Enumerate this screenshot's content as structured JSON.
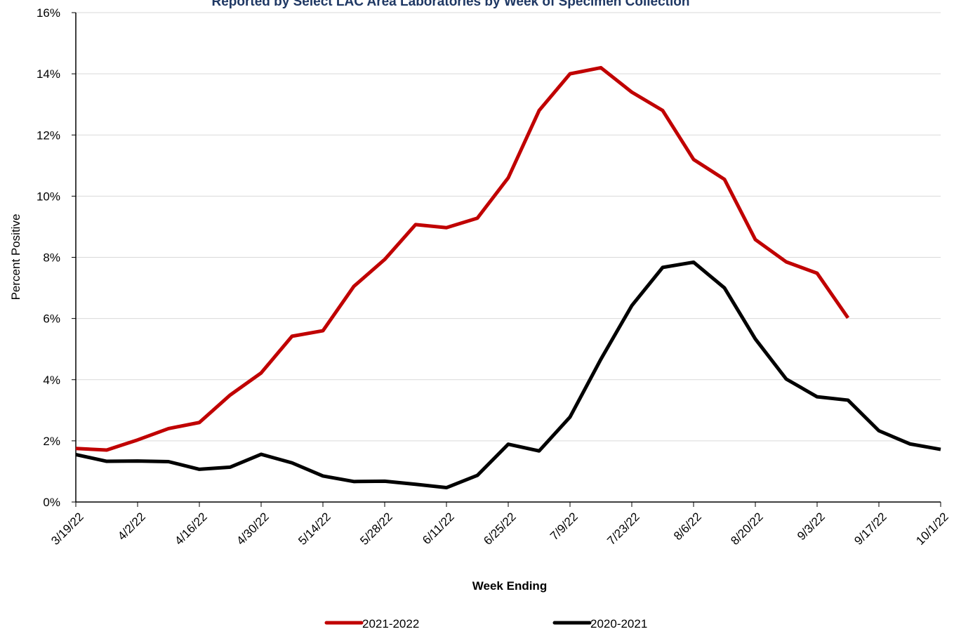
{
  "chart_data": {
    "type": "line",
    "title": "Reported by Select LAC Area Laboratories by Week of Specimen Collection",
    "x_label": "Week Ending",
    "y_label": "Percent Positive",
    "categories": [
      "3/19/22",
      null,
      "4/2/22",
      null,
      "4/16/22",
      null,
      "4/30/22",
      null,
      "5/14/22",
      null,
      "5/28/22",
      null,
      "6/11/22",
      null,
      "6/25/22",
      null,
      "7/9/22",
      null,
      "7/23/22",
      null,
      "8/6/22",
      null,
      "8/20/22",
      null,
      "9/3/22",
      null,
      "9/17/22",
      null,
      "10/1/22"
    ],
    "series": [
      {
        "name": "2021-2022",
        "color": "#c00000",
        "values": [
          1.75,
          1.7,
          2.03,
          2.4,
          2.6,
          3.5,
          4.22,
          5.42,
          5.6,
          7.05,
          7.93,
          9.07,
          8.97,
          9.28,
          10.6,
          12.8,
          14.0,
          14.2,
          13.4,
          12.8,
          11.2,
          10.55,
          8.58,
          7.85,
          7.48,
          6.02,
          null,
          null,
          null
        ]
      },
      {
        "name": "2020-2021",
        "color": "#000000",
        "values": [
          1.55,
          1.33,
          1.34,
          1.32,
          1.07,
          1.14,
          1.56,
          1.28,
          0.85,
          0.67,
          0.68,
          0.58,
          0.47,
          0.87,
          1.89,
          1.67,
          2.78,
          4.67,
          6.42,
          7.67,
          7.84,
          7.0,
          5.33,
          4.02,
          3.44,
          3.33,
          2.33,
          1.9,
          1.72
        ]
      }
    ],
    "ylim": [
      0,
      16
    ],
    "yticks": [
      {
        "value": 0,
        "label": "0%"
      },
      {
        "value": 2,
        "label": "2%"
      },
      {
        "value": 4,
        "label": "4%"
      },
      {
        "value": 6,
        "label": "6%"
      },
      {
        "value": 8,
        "label": "8%"
      },
      {
        "value": 10,
        "label": "10%"
      },
      {
        "value": 12,
        "label": "12%"
      },
      {
        "value": 14,
        "label": "14%"
      },
      {
        "value": 16,
        "label": "16%"
      }
    ],
    "grid": true,
    "legend": "bottom"
  }
}
